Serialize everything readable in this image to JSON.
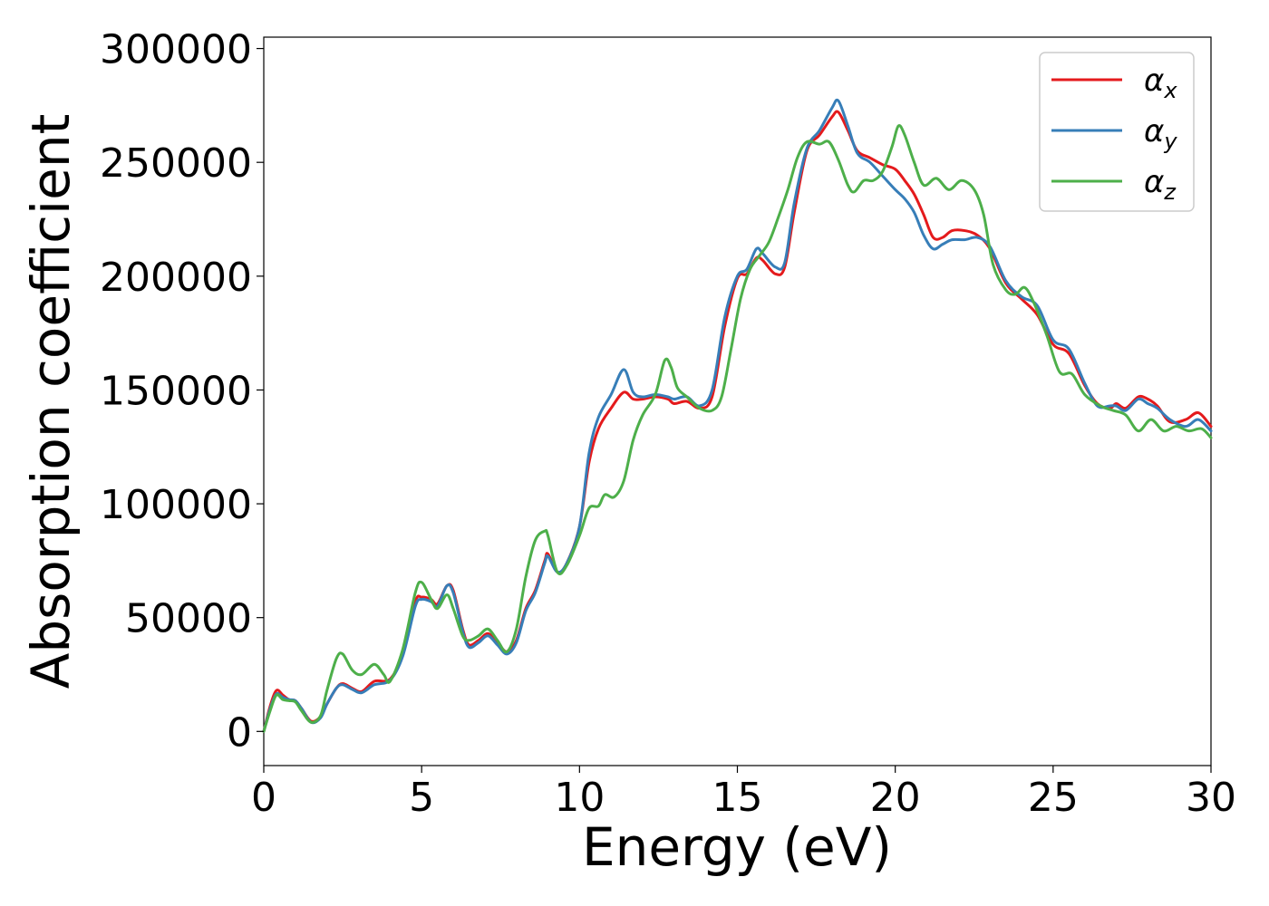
{
  "chart_data": {
    "type": "line",
    "title": "",
    "xlabel": "Energy (eV)",
    "ylabel": "Absorption coefficient",
    "xlim": [
      0,
      30
    ],
    "ylim": [
      -15000,
      305000
    ],
    "xticks": [
      0,
      5,
      10,
      15,
      20,
      25,
      30
    ],
    "yticks": [
      0,
      50000,
      100000,
      150000,
      200000,
      250000,
      300000
    ],
    "xtick_labels": [
      "0",
      "5",
      "10",
      "15",
      "20",
      "25",
      "30"
    ],
    "ytick_labels": [
      "0",
      "50000",
      "100000",
      "150000",
      "200000",
      "250000",
      "300000"
    ],
    "grid": false,
    "legend_position": "top-right",
    "series": [
      {
        "name": "α_x",
        "label_base": "α",
        "label_sub": "x",
        "color": "#e41a1c",
        "points": [
          [
            0.0,
            0
          ],
          [
            0.2,
            11000
          ],
          [
            0.4,
            18000
          ],
          [
            0.6,
            16000
          ],
          [
            0.8,
            14000
          ],
          [
            1.0,
            13500
          ],
          [
            1.2,
            10000
          ],
          [
            1.5,
            4500
          ],
          [
            1.8,
            6500
          ],
          [
            2.0,
            12000
          ],
          [
            2.3,
            19000
          ],
          [
            2.5,
            21000
          ],
          [
            2.8,
            19000
          ],
          [
            3.1,
            17500
          ],
          [
            3.5,
            22000
          ],
          [
            4.0,
            23000
          ],
          [
            4.4,
            34000
          ],
          [
            4.8,
            57000
          ],
          [
            5.0,
            59000
          ],
          [
            5.3,
            58000
          ],
          [
            5.5,
            56000
          ],
          [
            5.8,
            64000
          ],
          [
            6.0,
            62000
          ],
          [
            6.3,
            45000
          ],
          [
            6.5,
            38000
          ],
          [
            6.8,
            40000
          ],
          [
            7.1,
            43000
          ],
          [
            7.4,
            39000
          ],
          [
            7.7,
            35000
          ],
          [
            8.0,
            40000
          ],
          [
            8.3,
            54000
          ],
          [
            8.6,
            62000
          ],
          [
            8.9,
            75000
          ],
          [
            9.0,
            78000
          ],
          [
            9.3,
            70000
          ],
          [
            9.6,
            74000
          ],
          [
            10.0,
            90000
          ],
          [
            10.3,
            118000
          ],
          [
            10.6,
            133000
          ],
          [
            11.0,
            142000
          ],
          [
            11.4,
            149000
          ],
          [
            11.7,
            146000
          ],
          [
            12.0,
            146000
          ],
          [
            12.4,
            147000
          ],
          [
            12.8,
            146000
          ],
          [
            13.0,
            144000
          ],
          [
            13.4,
            145000
          ],
          [
            13.8,
            142000
          ],
          [
            14.2,
            147000
          ],
          [
            14.6,
            178000
          ],
          [
            15.0,
            199000
          ],
          [
            15.3,
            201000
          ],
          [
            15.6,
            208000
          ],
          [
            15.8,
            207000
          ],
          [
            16.2,
            201000
          ],
          [
            16.5,
            204000
          ],
          [
            16.8,
            228000
          ],
          [
            17.2,
            255000
          ],
          [
            17.6,
            262000
          ],
          [
            18.0,
            270000
          ],
          [
            18.2,
            272000
          ],
          [
            18.5,
            264000
          ],
          [
            18.8,
            255000
          ],
          [
            19.2,
            252000
          ],
          [
            19.6,
            249000
          ],
          [
            20.0,
            247000
          ],
          [
            20.3,
            242000
          ],
          [
            20.6,
            236000
          ],
          [
            20.9,
            227000
          ],
          [
            21.2,
            217000
          ],
          [
            21.5,
            217000
          ],
          [
            21.8,
            220000
          ],
          [
            22.2,
            220000
          ],
          [
            22.6,
            218000
          ],
          [
            23.0,
            212000
          ],
          [
            23.5,
            197000
          ],
          [
            24.0,
            190000
          ],
          [
            24.5,
            183000
          ],
          [
            25.0,
            170000
          ],
          [
            25.5,
            166000
          ],
          [
            26.0,
            152000
          ],
          [
            26.4,
            144000
          ],
          [
            26.8,
            142000
          ],
          [
            27.0,
            144000
          ],
          [
            27.3,
            142000
          ],
          [
            27.7,
            147000
          ],
          [
            28.0,
            146000
          ],
          [
            28.3,
            143000
          ],
          [
            28.7,
            136000
          ],
          [
            29.2,
            137000
          ],
          [
            29.6,
            140000
          ],
          [
            30.0,
            134000
          ]
        ]
      },
      {
        "name": "α_y",
        "label_base": "α",
        "label_sub": "y",
        "color": "#377eb8",
        "points": [
          [
            0.0,
            0
          ],
          [
            0.2,
            10000
          ],
          [
            0.4,
            16500
          ],
          [
            0.6,
            15000
          ],
          [
            0.8,
            14000
          ],
          [
            1.0,
            13500
          ],
          [
            1.2,
            10000
          ],
          [
            1.5,
            4000
          ],
          [
            1.8,
            6000
          ],
          [
            2.0,
            12000
          ],
          [
            2.3,
            19000
          ],
          [
            2.5,
            20500
          ],
          [
            2.8,
            18500
          ],
          [
            3.1,
            17000
          ],
          [
            3.5,
            20500
          ],
          [
            4.0,
            22500
          ],
          [
            4.4,
            33000
          ],
          [
            4.8,
            55000
          ],
          [
            5.0,
            58000
          ],
          [
            5.3,
            57000
          ],
          [
            5.5,
            55000
          ],
          [
            5.8,
            64000
          ],
          [
            6.0,
            61000
          ],
          [
            6.3,
            44000
          ],
          [
            6.5,
            37000
          ],
          [
            6.8,
            39000
          ],
          [
            7.1,
            42000
          ],
          [
            7.4,
            38000
          ],
          [
            7.7,
            34000
          ],
          [
            8.0,
            39000
          ],
          [
            8.3,
            53000
          ],
          [
            8.6,
            61000
          ],
          [
            8.9,
            74000
          ],
          [
            9.0,
            77000
          ],
          [
            9.3,
            70000
          ],
          [
            9.6,
            74000
          ],
          [
            10.0,
            90000
          ],
          [
            10.3,
            122000
          ],
          [
            10.6,
            138000
          ],
          [
            11.0,
            148000
          ],
          [
            11.4,
            159000
          ],
          [
            11.7,
            149000
          ],
          [
            12.0,
            147000
          ],
          [
            12.4,
            148000
          ],
          [
            12.8,
            147000
          ],
          [
            13.0,
            146000
          ],
          [
            13.4,
            147000
          ],
          [
            13.8,
            143000
          ],
          [
            14.2,
            150000
          ],
          [
            14.6,
            182000
          ],
          [
            15.0,
            200000
          ],
          [
            15.3,
            203000
          ],
          [
            15.6,
            212000
          ],
          [
            15.8,
            210000
          ],
          [
            16.2,
            204000
          ],
          [
            16.5,
            206000
          ],
          [
            16.8,
            232000
          ],
          [
            17.2,
            256000
          ],
          [
            17.6,
            264000
          ],
          [
            18.0,
            274000
          ],
          [
            18.2,
            277000
          ],
          [
            18.5,
            266000
          ],
          [
            18.8,
            254000
          ],
          [
            19.2,
            250000
          ],
          [
            19.6,
            244000
          ],
          [
            20.0,
            238000
          ],
          [
            20.3,
            234000
          ],
          [
            20.6,
            228000
          ],
          [
            20.9,
            218000
          ],
          [
            21.2,
            212000
          ],
          [
            21.5,
            214000
          ],
          [
            21.8,
            216000
          ],
          [
            22.2,
            216000
          ],
          [
            22.6,
            217000
          ],
          [
            23.0,
            213000
          ],
          [
            23.5,
            198000
          ],
          [
            24.0,
            191000
          ],
          [
            24.5,
            187000
          ],
          [
            25.0,
            172000
          ],
          [
            25.5,
            168000
          ],
          [
            26.0,
            153000
          ],
          [
            26.4,
            143000
          ],
          [
            26.8,
            143000
          ],
          [
            27.0,
            143000
          ],
          [
            27.3,
            141000
          ],
          [
            27.7,
            146000
          ],
          [
            28.0,
            144000
          ],
          [
            28.3,
            142000
          ],
          [
            28.7,
            137000
          ],
          [
            29.2,
            134000
          ],
          [
            29.6,
            137000
          ],
          [
            30.0,
            132000
          ]
        ]
      },
      {
        "name": "α_z",
        "label_base": "α",
        "label_sub": "z",
        "color": "#4daf4a",
        "points": [
          [
            0.0,
            0
          ],
          [
            0.2,
            9000
          ],
          [
            0.4,
            16000
          ],
          [
            0.6,
            14000
          ],
          [
            0.8,
            13500
          ],
          [
            1.0,
            13000
          ],
          [
            1.2,
            9000
          ],
          [
            1.5,
            4000
          ],
          [
            1.8,
            7000
          ],
          [
            2.0,
            18000
          ],
          [
            2.3,
            32000
          ],
          [
            2.5,
            34000
          ],
          [
            2.8,
            27000
          ],
          [
            3.1,
            25000
          ],
          [
            3.5,
            29500
          ],
          [
            3.8,
            25000
          ],
          [
            4.0,
            22000
          ],
          [
            4.4,
            36000
          ],
          [
            4.8,
            61000
          ],
          [
            5.0,
            65500
          ],
          [
            5.3,
            58000
          ],
          [
            5.5,
            54000
          ],
          [
            5.8,
            60000
          ],
          [
            6.0,
            54000
          ],
          [
            6.3,
            42000
          ],
          [
            6.5,
            40000
          ],
          [
            6.8,
            42000
          ],
          [
            7.1,
            45000
          ],
          [
            7.4,
            40000
          ],
          [
            7.7,
            35000
          ],
          [
            8.0,
            45000
          ],
          [
            8.3,
            68000
          ],
          [
            8.6,
            84000
          ],
          [
            8.9,
            88000
          ],
          [
            9.0,
            86000
          ],
          [
            9.3,
            70000
          ],
          [
            9.6,
            73000
          ],
          [
            10.0,
            86000
          ],
          [
            10.3,
            98000
          ],
          [
            10.6,
            99000
          ],
          [
            10.8,
            104000
          ],
          [
            11.1,
            103000
          ],
          [
            11.4,
            110000
          ],
          [
            11.7,
            128000
          ],
          [
            12.0,
            139000
          ],
          [
            12.4,
            148000
          ],
          [
            12.7,
            163000
          ],
          [
            12.9,
            160000
          ],
          [
            13.1,
            151000
          ],
          [
            13.4,
            147000
          ],
          [
            13.8,
            142000
          ],
          [
            14.2,
            141000
          ],
          [
            14.5,
            147000
          ],
          [
            14.8,
            168000
          ],
          [
            15.1,
            190000
          ],
          [
            15.4,
            203000
          ],
          [
            15.7,
            209000
          ],
          [
            16.0,
            215000
          ],
          [
            16.3,
            226000
          ],
          [
            16.6,
            238000
          ],
          [
            16.9,
            252000
          ],
          [
            17.2,
            259000
          ],
          [
            17.6,
            258000
          ],
          [
            17.9,
            259000
          ],
          [
            18.2,
            251000
          ],
          [
            18.5,
            240000
          ],
          [
            18.7,
            237000
          ],
          [
            19.0,
            242000
          ],
          [
            19.3,
            242000
          ],
          [
            19.6,
            246000
          ],
          [
            19.9,
            257000
          ],
          [
            20.1,
            266000
          ],
          [
            20.3,
            262000
          ],
          [
            20.6,
            250000
          ],
          [
            20.9,
            240000
          ],
          [
            21.3,
            243000
          ],
          [
            21.7,
            238000
          ],
          [
            22.1,
            242000
          ],
          [
            22.5,
            238000
          ],
          [
            22.8,
            227000
          ],
          [
            23.1,
            205000
          ],
          [
            23.5,
            194000
          ],
          [
            23.8,
            192000
          ],
          [
            24.1,
            195000
          ],
          [
            24.4,
            188000
          ],
          [
            24.8,
            174000
          ],
          [
            25.2,
            158000
          ],
          [
            25.6,
            157000
          ],
          [
            26.0,
            148000
          ],
          [
            26.5,
            143000
          ],
          [
            26.9,
            141000
          ],
          [
            27.3,
            139000
          ],
          [
            27.7,
            132000
          ],
          [
            28.1,
            137000
          ],
          [
            28.5,
            132000
          ],
          [
            28.9,
            134000
          ],
          [
            29.3,
            132000
          ],
          [
            29.7,
            133000
          ],
          [
            30.0,
            129000
          ]
        ]
      }
    ]
  }
}
